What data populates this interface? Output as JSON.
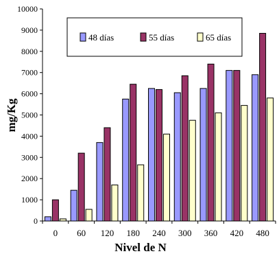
{
  "chart_data": {
    "type": "bar",
    "title": "",
    "xlabel": "Nivel de N",
    "ylabel": "mg/Kg",
    "categories": [
      "0",
      "60",
      "120",
      "180",
      "240",
      "300",
      "360",
      "420",
      "480"
    ],
    "series": [
      {
        "name": "48 días",
        "color": "#9999FF",
        "values": [
          200,
          1450,
          3700,
          5750,
          6250,
          6050,
          6250,
          7100,
          6900
        ]
      },
      {
        "name": "55 días",
        "color": "#993366",
        "values": [
          1000,
          3200,
          4400,
          6450,
          6200,
          6850,
          7400,
          7100,
          8850
        ]
      },
      {
        "name": "65 días",
        "color": "#FFFFCC",
        "values": [
          100,
          550,
          1700,
          2650,
          4100,
          4750,
          5100,
          5450,
          5800
        ]
      }
    ],
    "ylim": [
      0,
      10000
    ],
    "yticks": [
      "0",
      "1000",
      "2000",
      "3000",
      "4000",
      "5000",
      "6000",
      "7000",
      "8000",
      "9000",
      "10000"
    ],
    "grid": false,
    "legend_position": "top"
  }
}
